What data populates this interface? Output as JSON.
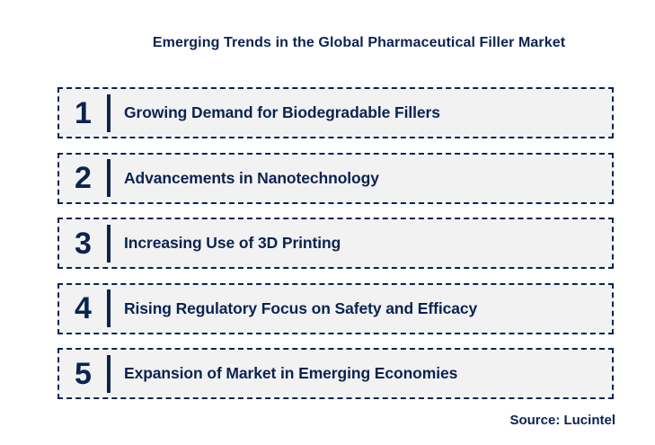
{
  "title": "Emerging Trends in the Global Pharmaceutical Filler Market",
  "source": "Source: Lucintel",
  "colors": {
    "navy": "#0a2351",
    "box_bg": "#f2f2f2"
  },
  "trends": [
    {
      "number": "1",
      "label": "Growing Demand for Biodegradable Fillers"
    },
    {
      "number": "2",
      "label": "Advancements in Nanotechnology"
    },
    {
      "number": "3",
      "label": "Increasing Use of 3D Printing"
    },
    {
      "number": "4",
      "label": "Rising Regulatory Focus on Safety and Efficacy"
    },
    {
      "number": "5",
      "label": "Expansion of Market in Emerging Economies"
    }
  ]
}
